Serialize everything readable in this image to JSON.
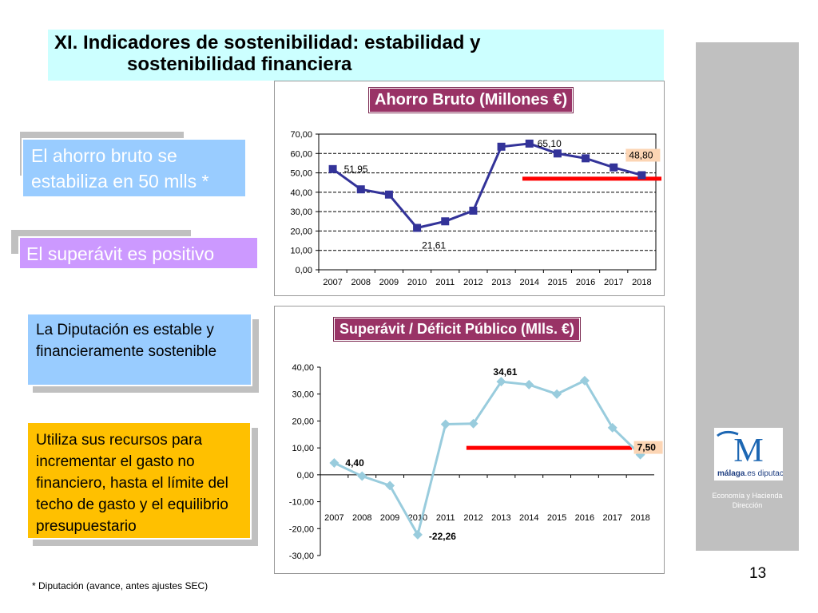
{
  "slide": {
    "title_line1": "XI. Indicadores de sostenibilidad: estabilidad y",
    "title_line2": "sostenibilidad financiera",
    "page_number": "13",
    "footnote": "* Diputación (avance, antes ajustes SEC)"
  },
  "callouts": {
    "c1": "El ahorro bruto se estabiliza en 50 mlls *",
    "c2": "El superávit es positivo",
    "c3": "La Diputación es estable y financieramente sostenible",
    "c4": "Utiliza sus recursos para incrementar el gasto no financiero, hasta el límite del techo de gasto y el equilibrio presupuestario"
  },
  "logo": {
    "letter": "M",
    "brand_bold": "málaga",
    "brand_rest": ".es diputación",
    "subtitle_line1": "Economía y Hacienda",
    "subtitle_line2": "Dirección"
  },
  "colors": {
    "title_bg": "#ccffff",
    "chart_title_bg": "#993366",
    "series1": "#333399",
    "series2": "#99ccdd",
    "reference_line": "#ff0000",
    "callout_blue": "#99ccff",
    "callout_purple": "#cc99ff",
    "callout_orange": "#ffc000",
    "sidebar": "#c0c0c0"
  },
  "chart_data": [
    {
      "type": "line",
      "title": "Ahorro Bruto (Millones €)",
      "categories": [
        "2007",
        "2008",
        "2009",
        "2010",
        "2011",
        "2012",
        "2013",
        "2014",
        "2015",
        "2016",
        "2017",
        "2018"
      ],
      "series": [
        {
          "values": [
            51.95,
            41.5,
            38.8,
            21.61,
            25.0,
            30.5,
            63.5,
            65.1,
            60.0,
            57.5,
            52.8,
            48.8
          ],
          "marker": "square",
          "color": "#333399"
        }
      ],
      "reference_line": {
        "value": 47.0,
        "from": "2014",
        "to": "2018"
      },
      "data_labels": [
        {
          "category": "2007",
          "text": "51,95"
        },
        {
          "category": "2010",
          "text": "21,61"
        },
        {
          "category": "2014",
          "text": "65,10"
        },
        {
          "category": "2018",
          "text": "48,80",
          "boxed": true
        }
      ],
      "y_ticks": [
        "0,00",
        "10,00",
        "20,00",
        "30,00",
        "40,00",
        "50,00",
        "60,00",
        "70,00"
      ],
      "ylim": [
        0,
        70
      ],
      "grid": "horizontal-dashed",
      "legend": "none"
    },
    {
      "type": "line",
      "title": "Superávit / Déficit Público (Mlls. €)",
      "categories": [
        "2007",
        "2008",
        "2009",
        "2010",
        "2011",
        "2012",
        "2013",
        "2014",
        "2015",
        "2016",
        "2017",
        "2018"
      ],
      "series": [
        {
          "values": [
            4.4,
            -0.5,
            -4.0,
            -22.26,
            18.8,
            19.0,
            34.61,
            33.5,
            30.0,
            35.0,
            17.5,
            7.5
          ],
          "marker": "diamond",
          "color": "#99ccdd"
        }
      ],
      "reference_line": {
        "value": 10.0,
        "from": "2012",
        "to": "2017"
      },
      "data_labels": [
        {
          "category": "2007",
          "text": "4,40"
        },
        {
          "category": "2010",
          "text": "-22,26"
        },
        {
          "category": "2013",
          "text": "34,61"
        },
        {
          "category": "2018",
          "text": "7,50",
          "boxed": true
        }
      ],
      "y_ticks": [
        "-30,00",
        "-20,00",
        "-10,00",
        "0,00",
        "10,00",
        "20,00",
        "30,00",
        "40,00"
      ],
      "ylim": [
        -30,
        40
      ],
      "grid": "none",
      "legend": "none"
    }
  ]
}
